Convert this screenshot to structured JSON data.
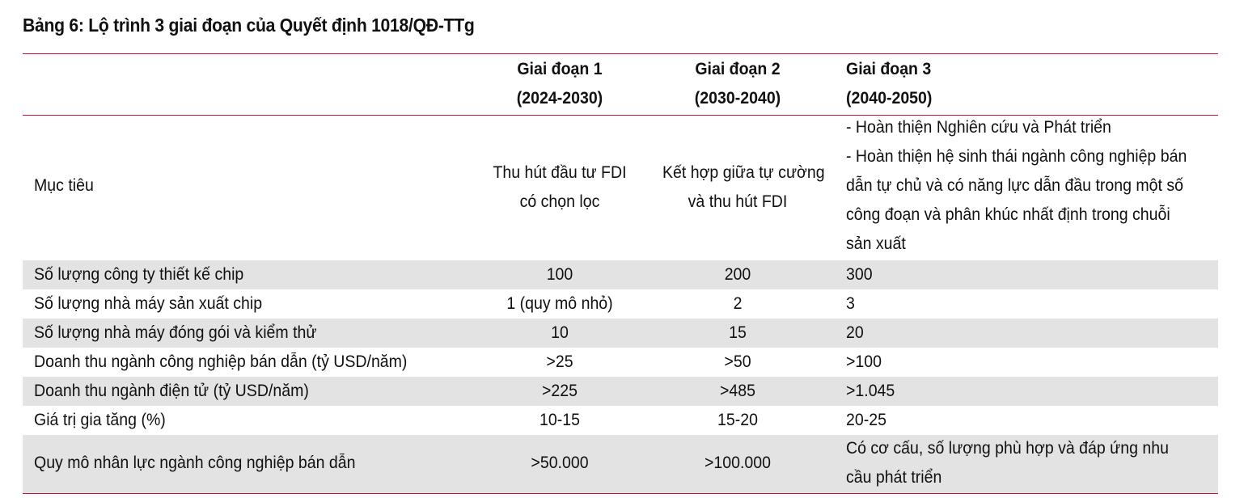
{
  "title": "Bảng 6: Lộ trình 3 giai đoạn của Quyết định 1018/QĐ-TTg",
  "colors": {
    "accent_line": "#c8102e",
    "shaded_row": "#e3e3e3"
  },
  "columns": [
    {
      "name": "Giai đoạn 1",
      "period": "(2024-2030)"
    },
    {
      "name": "Giai đoạn 2",
      "period": "(2030-2040)"
    },
    {
      "name": "Giai đoạn 3",
      "period": "(2040-2050)"
    }
  ],
  "objective": {
    "label": "Mục tiêu",
    "phase1": [
      "Thu hút đầu tư FDI",
      "có chọn lọc"
    ],
    "phase2": [
      "Kết hợp giữa tự cường",
      "và thu hút FDI"
    ],
    "phase3": [
      "- Hoàn thiện Nghiên cứu và Phát triển",
      "- Hoàn thiện hệ sinh thái ngành công nghiệp bán",
      "dẫn tự chủ và có năng lực dẫn đầu trong một số",
      "công đoạn và phân khúc nhất định trong chuỗi",
      "sản xuất"
    ]
  },
  "rows": [
    {
      "label": "Số lượng công ty thiết kế chip",
      "p1": "100",
      "p2": "200",
      "p3": "300"
    },
    {
      "label": "Số lượng nhà máy sản xuất chip",
      "p1": "1 (quy mô nhỏ)",
      "p2": "2",
      "p3": "3"
    },
    {
      "label": "Số lượng nhà máy đóng gói và kiểm thử",
      "p1": "10",
      "p2": "15",
      "p3": "20"
    },
    {
      "label": "Doanh thu ngành công nghiệp bán dẫn (tỷ USD/năm)",
      "p1": ">25",
      "p2": ">50",
      "p3": ">100"
    },
    {
      "label": "Doanh thu ngành điện tử (tỷ USD/năm)",
      "p1": ">225",
      "p2": ">485",
      "p3": ">1.045"
    },
    {
      "label": "Giá trị gia tăng (%)",
      "p1": "10-15",
      "p2": "15-20",
      "p3": "20-25"
    }
  ],
  "workforce": {
    "label": "Quy mô nhân lực ngành công nghiệp bán dẫn",
    "p1": ">50.000",
    "p2": ">100.000",
    "p3": [
      "Có cơ cấu, số lượng phù hợp và đáp ứng nhu",
      "cầu phát triển"
    ]
  }
}
